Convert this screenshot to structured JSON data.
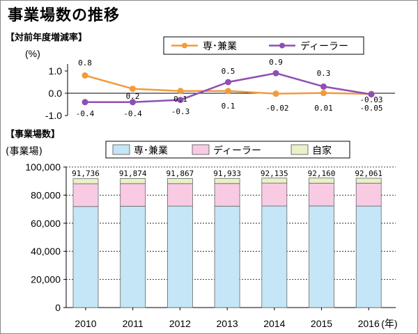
{
  "title": "事業場数の推移",
  "chart_data": [
    {
      "type": "line",
      "section_label": "【対前年度増減率】",
      "unit_label": "(%)",
      "categories": [
        "2010",
        "2011",
        "2012",
        "2013",
        "2014",
        "2015",
        "2016"
      ],
      "ylim": [
        -1.0,
        1.0
      ],
      "yticks": [
        "1.0",
        "0.0",
        "-1.0"
      ],
      "series": [
        {
          "name": "専･兼業",
          "color": "#f39a3c",
          "values": [
            0.8,
            0.2,
            0.1,
            0.1,
            -0.02,
            0.01,
            -0.03
          ],
          "labels": [
            "0.8",
            "0.2",
            "0.1",
            "0.1",
            "-0.02",
            "0.01",
            "-0.03"
          ]
        },
        {
          "name": "ディーラー",
          "color": "#8e4fb4",
          "values": [
            -0.4,
            -0.4,
            -0.3,
            0.5,
            0.9,
            0.3,
            -0.05
          ],
          "labels": [
            "-0.4",
            "-0.4",
            "-0.3",
            "0.5",
            "0.9",
            "0.3",
            "-0.05"
          ]
        }
      ],
      "legend": "top-right"
    },
    {
      "type": "bar",
      "stacked": true,
      "section_label": "【事業場数】",
      "unit_label": "(事業場)",
      "categories": [
        "2010",
        "2011",
        "2012",
        "2013",
        "2014",
        "2015",
        "2016"
      ],
      "x_unit": "(年)",
      "ylim": [
        0,
        100000
      ],
      "yticks": [
        "100,000",
        "80,000",
        "60,000",
        "40,000",
        "20,000",
        "0"
      ],
      "series": [
        {
          "name": "専･兼業",
          "color": "#c4e6f6",
          "values": [
            71900,
            72100,
            72200,
            72150,
            72250,
            72300,
            72200
          ]
        },
        {
          "name": "ディーラー",
          "color": "#f8cbe3",
          "values": [
            16200,
            16100,
            16000,
            16100,
            16300,
            16200,
            16300
          ]
        },
        {
          "name": "自家",
          "color": "#e8f1c8",
          "values": [
            3636,
            3674,
            3667,
            3683,
            3585,
            3660,
            3561
          ]
        }
      ],
      "totals": [
        "91,736",
        "91,874",
        "91,867",
        "91,933",
        "92,135",
        "92,160",
        "92,061"
      ],
      "legend": "top"
    }
  ]
}
